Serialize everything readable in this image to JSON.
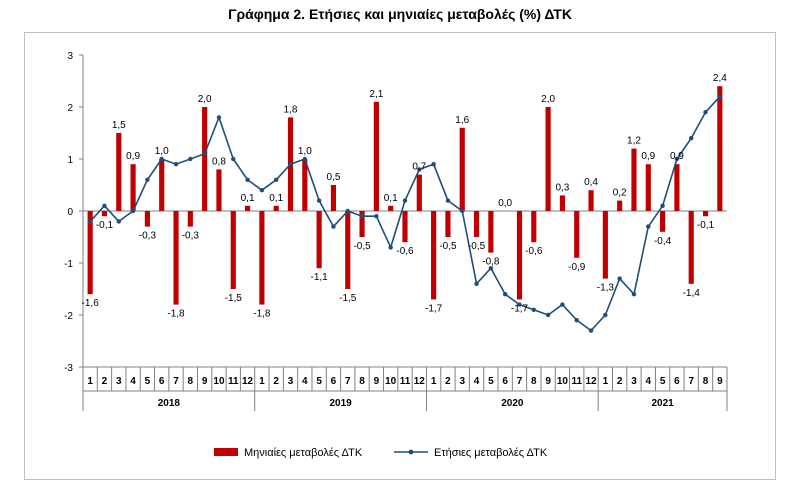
{
  "title": "Γράφημα 2. Ετήσιες και μηνιαίες μεταβολές (%) ΔΤΚ",
  "chart_data": {
    "type": "bar",
    "ylim": [
      -3,
      3
    ],
    "yticks": [
      -3,
      -2,
      -1,
      0,
      1,
      2,
      3
    ],
    "grid": false,
    "legend_position": "bottom",
    "months": [
      "1",
      "2",
      "3",
      "4",
      "5",
      "6",
      "7",
      "8",
      "9",
      "10",
      "11",
      "12",
      "1",
      "2",
      "3",
      "4",
      "5",
      "6",
      "7",
      "8",
      "9",
      "10",
      "11",
      "12",
      "1",
      "2",
      "3",
      "4",
      "5",
      "6",
      "7",
      "8",
      "9",
      "10",
      "11",
      "12",
      "1",
      "2",
      "3",
      "4",
      "5",
      "6",
      "7",
      "8",
      "9"
    ],
    "years": [
      {
        "label": "2018",
        "months": 12
      },
      {
        "label": "2019",
        "months": 12
      },
      {
        "label": "2020",
        "months": 12
      },
      {
        "label": "2021",
        "months": 9
      }
    ],
    "series": [
      {
        "name": "Μηνιαίες μεταβολές ΔΤΚ",
        "type": "bar",
        "color": "#c00000",
        "values": [
          -1.6,
          -0.1,
          1.5,
          0.9,
          -0.3,
          1.0,
          -1.8,
          -0.3,
          2.0,
          0.8,
          -1.5,
          0.1,
          -1.8,
          0.1,
          1.8,
          1.0,
          -1.1,
          0.5,
          -1.5,
          -0.5,
          2.1,
          0.1,
          -0.6,
          0.7,
          -1.7,
          -0.5,
          1.6,
          -0.5,
          -0.8,
          0.0,
          -1.7,
          -0.6,
          2.0,
          0.3,
          -0.9,
          0.4,
          -1.3,
          0.2,
          1.2,
          0.9,
          -0.4,
          0.9,
          -1.4,
          -0.1,
          2.4
        ],
        "labels": [
          "-1,6",
          "-0,1",
          "1,5",
          "0,9",
          "-0,3",
          "1,0",
          "-1,8",
          "-0,3",
          "2,0",
          "0,8",
          "-1,5",
          "0,1",
          "-1,8",
          "0,1",
          "1,8",
          "1,0",
          "-1,1",
          "0,5",
          "-1,5",
          "-0,5",
          "2,1",
          "0,1",
          "-0,6",
          "0,7",
          "-1,7",
          "-0,5",
          "1,6",
          "-0,5",
          "-0,8",
          "0,0",
          "-1,7",
          "-0,6",
          "2,0",
          "0,3",
          "-0,9",
          "0,4",
          "-1,3",
          "0,2",
          "1,2",
          "0,9",
          "-0,4",
          "0,9",
          "-1,4",
          "-0,1",
          "2,4"
        ]
      },
      {
        "name": "Ετήσιες μεταβολές ΔΤΚ",
        "type": "line",
        "color": "#1f4e79",
        "values": [
          -0.2,
          0.1,
          -0.2,
          0.0,
          0.6,
          1.0,
          0.9,
          1.0,
          1.1,
          1.8,
          1.0,
          0.6,
          0.4,
          0.6,
          0.9,
          1.0,
          0.2,
          -0.3,
          0.0,
          -0.1,
          -0.1,
          -0.7,
          0.2,
          0.8,
          0.9,
          0.2,
          0.0,
          -1.4,
          -1.1,
          -1.6,
          -1.8,
          -1.9,
          -2.0,
          -1.8,
          -2.1,
          -2.3,
          -2.0,
          -1.3,
          -1.6,
          -0.3,
          0.1,
          1.0,
          1.4,
          1.9,
          2.2
        ]
      }
    ]
  }
}
